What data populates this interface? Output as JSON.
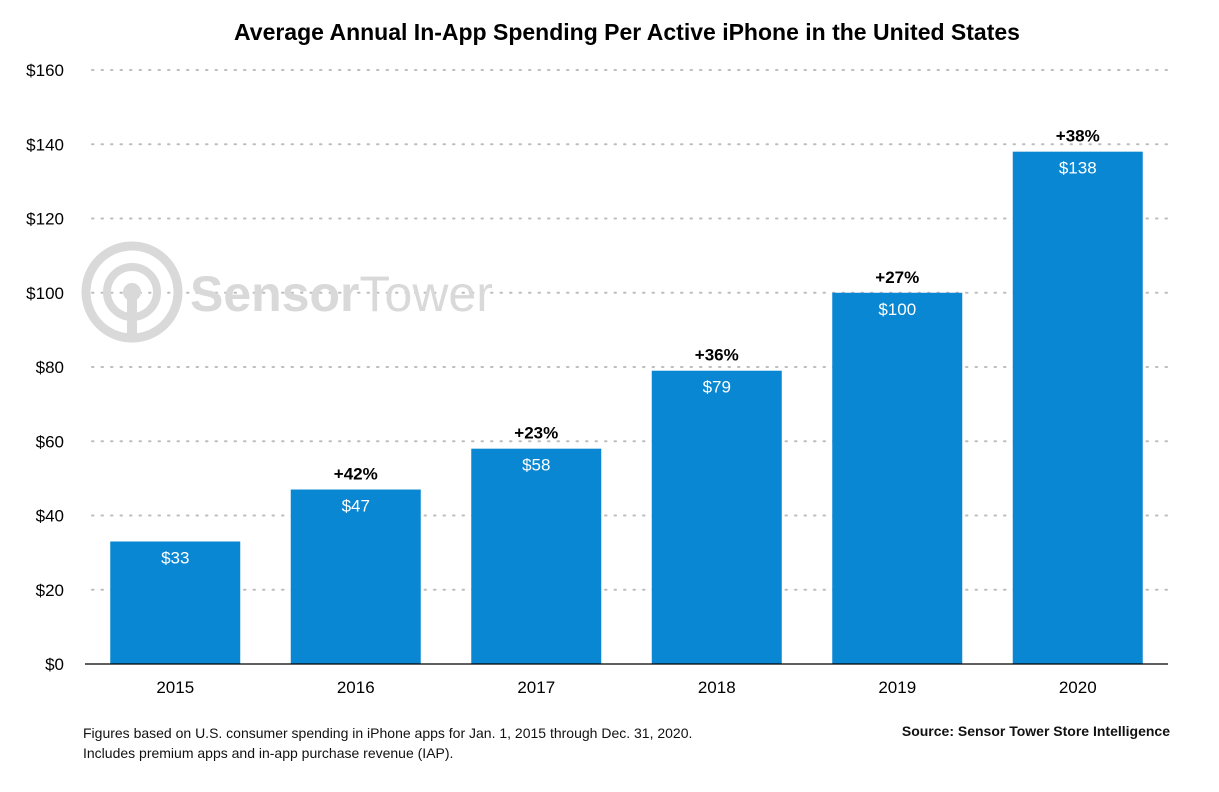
{
  "chart_data": {
    "type": "bar",
    "title": "Average Annual In-App Spending Per Active iPhone in the United States",
    "categories": [
      "2015",
      "2016",
      "2017",
      "2018",
      "2019",
      "2020"
    ],
    "values": [
      33,
      47,
      58,
      79,
      100,
      138
    ],
    "value_labels": [
      "$33",
      "$47",
      "$58",
      "$79",
      "$100",
      "$138"
    ],
    "growth_labels": [
      "",
      "+42%",
      "+23%",
      "+36%",
      "+27%",
      "+38%"
    ],
    "ylim": [
      0,
      160
    ],
    "yticks": [
      0,
      20,
      40,
      60,
      80,
      100,
      120,
      140,
      160
    ],
    "ytick_labels": [
      "$0",
      "$20",
      "$40",
      "$60",
      "$80",
      "$100",
      "$120",
      "$140",
      "$160"
    ],
    "xlabel": "",
    "ylabel": "",
    "grid": true,
    "bar_color": "#0a87d2"
  },
  "watermark": {
    "brand_first": "Sensor",
    "brand_second": "Tower",
    "icon": "sensor-tower-logo-icon",
    "color": "#d9d9d9"
  },
  "footnote": {
    "line1": "Figures based on U.S. consumer spending in iPhone apps for Jan. 1, 2015 through Dec. 31, 2020.",
    "line2": "Includes premium apps and in-app purchase revenue (IAP)."
  },
  "source": "Source: Sensor Tower Store Intelligence"
}
